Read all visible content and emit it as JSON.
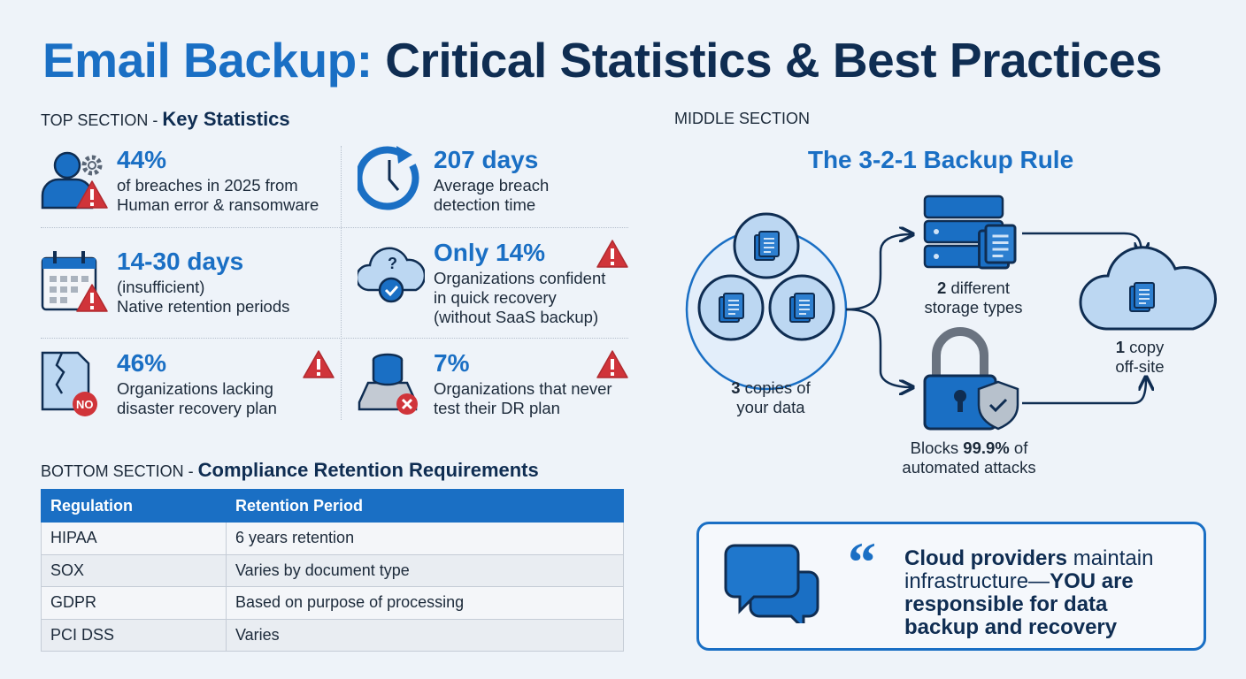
{
  "title": {
    "accent": "Email Backup:",
    "main": " Critical Statistics & Best Practices"
  },
  "top_section": {
    "label": "TOP SECTION - ",
    "bold": "Key Statistics",
    "stats": [
      {
        "value": "44%",
        "lines": [
          "of breaches in 2025 from",
          "Human error & ransomware"
        ],
        "icon": "user-gear-warning-icon",
        "warning": false
      },
      {
        "value": "207 days",
        "lines": [
          "Average breach",
          "detection time"
        ],
        "icon": "clock-refresh-icon",
        "warning": false
      },
      {
        "value": "14-30 days",
        "lines": [
          "(insufficient)",
          "Native retention periods"
        ],
        "icon": "calendar-warning-icon",
        "warning": false
      },
      {
        "value": "Only 14%",
        "lines": [
          "Organizations confident",
          "in quick recovery",
          "(without SaaS backup)"
        ],
        "icon": "cloud-check-icon",
        "warning": true
      },
      {
        "value": "46%",
        "lines": [
          "Organizations lacking",
          "disaster recovery plan"
        ],
        "icon": "broken-file-no-icon",
        "warning": true
      },
      {
        "value": "7%",
        "lines": [
          "Organizations that never",
          "test their DR plan"
        ],
        "icon": "database-error-icon",
        "warning": true
      }
    ]
  },
  "middle_section": {
    "label": "MIDDLE SECTION",
    "rule_title": "The 3-2-1 Backup Rule",
    "copies": {
      "num": "3",
      "text": " copies of",
      "line2": "your data"
    },
    "storage": {
      "num": "2",
      "text": " different",
      "line2": "storage types"
    },
    "offsite": {
      "num": "1",
      "text": " copy",
      "line2": "off-site"
    },
    "mfa": {
      "pre": "Blocks ",
      "bold": "99.9%",
      "post": " of",
      "line2": "automated attacks"
    }
  },
  "bottom_section": {
    "label": "BOTTOM SECTION - ",
    "bold": "Compliance Retention Requirements",
    "headers": [
      "Regulation",
      "Retention Period"
    ],
    "rows": [
      [
        "HIPAA",
        "6 years retention"
      ],
      [
        "SOX",
        "Varies by document type"
      ],
      [
        "GDPR",
        "Based on purpose of processing"
      ],
      [
        "PCI DSS",
        "Varies"
      ]
    ]
  },
  "quote": {
    "b1": "Cloud providers",
    "t1": " maintain",
    "t2": "infrastructure—",
    "b2": "YOU are",
    "b3": "responsible for data",
    "b4": "backup and recovery"
  },
  "colors": {
    "accent": "#1a6fc4",
    "navy": "#0f2d52",
    "warning": "#d0343a",
    "background": "#eef3f9"
  }
}
